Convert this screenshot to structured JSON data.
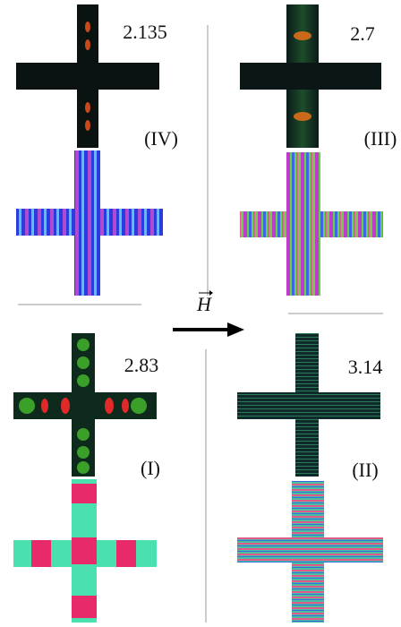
{
  "panels": [
    {
      "value": "2.135",
      "label": "(IV)"
    },
    {
      "value": "2.7",
      "label": "(III)"
    },
    {
      "value": "2.83",
      "label": "(I)"
    },
    {
      "value": "3.14",
      "label": "(II)"
    }
  ],
  "field_label": "H"
}
